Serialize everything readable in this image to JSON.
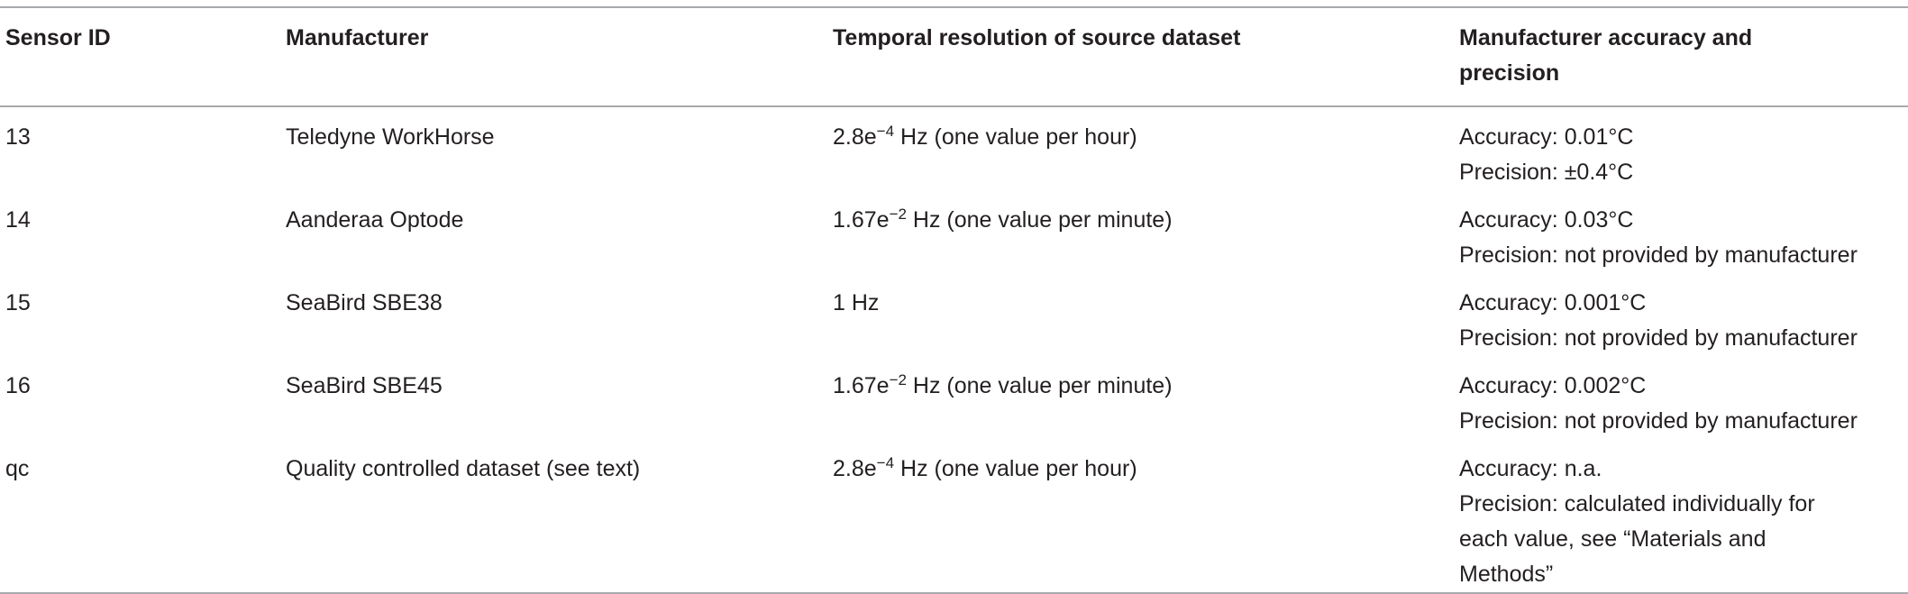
{
  "table": {
    "columns": [
      "Sensor ID",
      "Manufacturer",
      "Temporal resolution of source dataset",
      "Manufacturer accuracy and precision"
    ],
    "rows": [
      [
        "13",
        "Teledyne WorkHorse",
        {
          "mantissa": "2.8e",
          "exponent": "−4",
          "unit": " Hz (one value per hour)"
        },
        [
          "Accuracy: 0.01°C",
          "Precision: ±0.4°C"
        ]
      ],
      [
        "14",
        "Aanderaa Optode",
        {
          "mantissa": "1.67e",
          "exponent": "−2",
          "unit": " Hz (one value per minute)"
        },
        [
          "Accuracy: 0.03°C",
          "Precision: not provided by manufacturer"
        ]
      ],
      [
        "15",
        "SeaBird SBE38",
        "1 Hz",
        [
          "Accuracy: 0.001°C",
          "Precision: not provided by manufacturer"
        ]
      ],
      [
        "16",
        "SeaBird SBE45",
        {
          "mantissa": "1.67e",
          "exponent": "−2",
          "unit": " Hz (one value per minute)"
        },
        [
          "Accuracy: 0.002°C",
          "Precision: not provided by manufacturer"
        ]
      ],
      [
        "qc",
        "Quality controlled dataset (see text)",
        {
          "mantissa": "2.8e",
          "exponent": "−4",
          "unit": " Hz (one value per hour)"
        },
        [
          "Accuracy: n.a.",
          "Precision: calculated individually for",
          "each value, see “Materials and",
          "Methods”"
        ]
      ]
    ]
  }
}
